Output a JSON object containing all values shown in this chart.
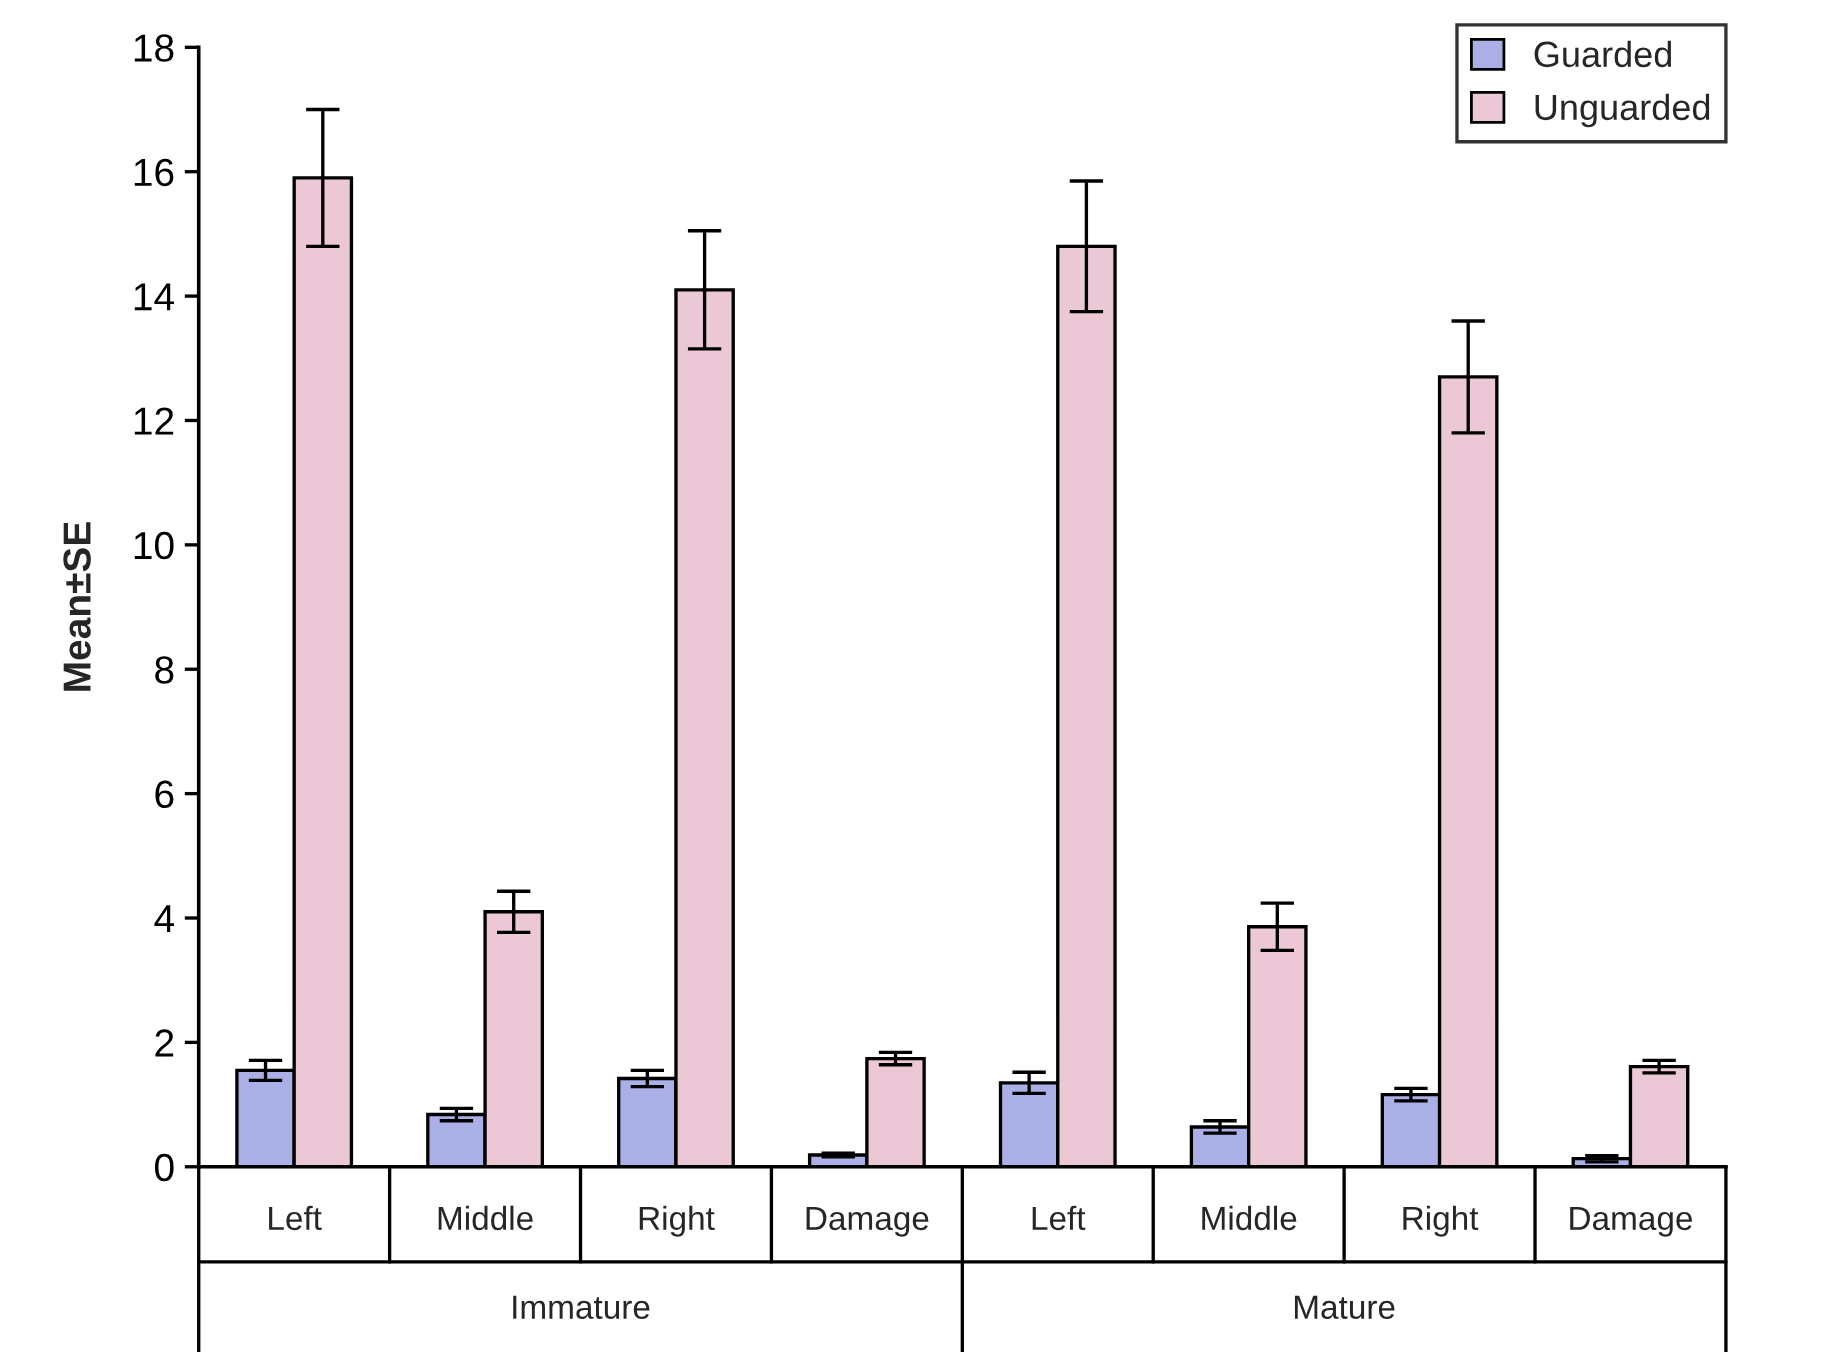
{
  "chart_data": {
    "type": "bar",
    "ylabel": "Mean±SE",
    "categories": [
      "Left",
      "Middle",
      "Right",
      "Damage",
      "Left",
      "Middle",
      "Right",
      "Damage"
    ],
    "series": [
      {
        "name": "Guarded",
        "color": "#aab0e6",
        "values": [
          1.55,
          0.84,
          1.42,
          0.19,
          1.35,
          0.64,
          1.16,
          0.13
        ],
        "errors": [
          0.16,
          0.1,
          0.13,
          0.03,
          0.17,
          0.1,
          0.1,
          0.05
        ]
      },
      {
        "name": "Unguarded",
        "color": "#ecc8d6",
        "values": [
          15.9,
          4.1,
          14.1,
          1.74,
          14.8,
          3.86,
          12.7,
          1.61
        ],
        "errors": [
          1.1,
          0.33,
          0.95,
          0.1,
          1.05,
          0.38,
          0.9,
          0.1
        ]
      }
    ],
    "annotations": [
      "Immature",
      "Mature"
    ],
    "ylim": [
      0,
      18
    ],
    "yticks": [
      0,
      2,
      4,
      6,
      8,
      10,
      12,
      14,
      16,
      18
    ],
    "grid": false,
    "legend": "top right"
  }
}
